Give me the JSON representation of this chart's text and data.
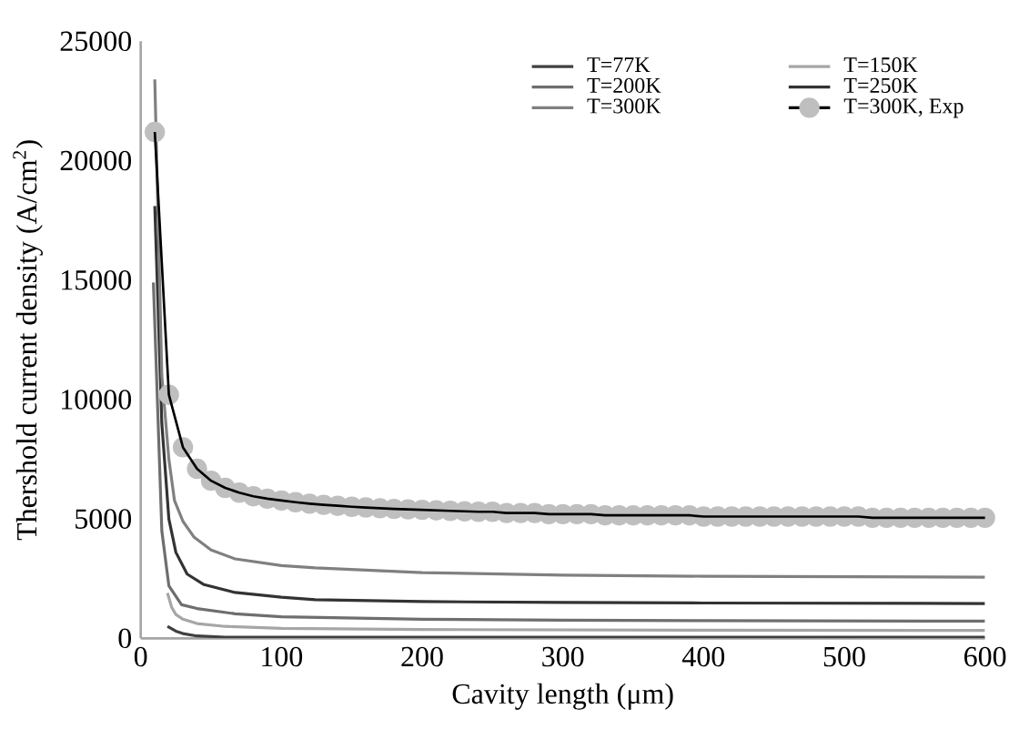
{
  "chart_data": {
    "type": "line",
    "xlabel": "Cavity length (μm)",
    "ylabel": "Thershold current density (A/cm$^{2}$)",
    "xlim": [
      0,
      600
    ],
    "ylim": [
      0,
      25000
    ],
    "xticks": [
      0,
      100,
      200,
      300,
      400,
      500,
      600
    ],
    "yticks": [
      0,
      5000,
      10000,
      15000,
      20000,
      25000
    ],
    "grid": false,
    "legend": "top right",
    "marker": "none",
    "series": [
      {
        "name": "T=77K",
        "color": "#404040",
        "x": [
          19,
          25,
          30,
          40,
          60,
          100,
          200,
          400,
          600
        ],
        "values": [
          500,
          300,
          200,
          100,
          50,
          50,
          50,
          50,
          50
        ]
      },
      {
        "name": "T=150K",
        "color": "#a6a6a6",
        "x": [
          19,
          22,
          25,
          30,
          40,
          60,
          100,
          200,
          400,
          600
        ],
        "values": [
          1900,
          1300,
          1000,
          800,
          620,
          500,
          420,
          370,
          340,
          330
        ]
      },
      {
        "name": "T=200K",
        "color": "#6e6e6e",
        "x": [
          9,
          15,
          20,
          29,
          40,
          67,
          100,
          200,
          300,
          400,
          600
        ],
        "values": [
          14900,
          4500,
          2200,
          1410,
          1250,
          1030,
          900,
          800,
          760,
          740,
          720
        ]
      },
      {
        "name": "T=250K",
        "color": "#333333",
        "x": [
          10,
          15,
          20,
          25,
          33,
          45,
          67,
          100,
          124,
          200,
          300,
          400,
          600
        ],
        "values": [
          18100,
          9000,
          5000,
          3600,
          2690,
          2250,
          1920,
          1720,
          1620,
          1540,
          1500,
          1480,
          1460
        ]
      },
      {
        "name": "T=300K",
        "color": "#808080",
        "x": [
          10,
          15,
          20,
          24,
          30,
          38,
          50,
          67,
          100,
          124,
          200,
          300,
          400,
          600
        ],
        "values": [
          23400,
          11000,
          7500,
          5770,
          4900,
          4230,
          3700,
          3330,
          3050,
          2950,
          2750,
          2650,
          2600,
          2560
        ]
      },
      {
        "name": "T=300K, Exp",
        "color": "#000000",
        "marker": "circle",
        "x": [
          10,
          20,
          30,
          40,
          50,
          60,
          70,
          80,
          90,
          100,
          110,
          120,
          130,
          140,
          150,
          160,
          170,
          180,
          190,
          200,
          210,
          220,
          230,
          240,
          250,
          260,
          270,
          280,
          290,
          300,
          310,
          320,
          330,
          340,
          350,
          360,
          370,
          380,
          390,
          400,
          410,
          420,
          430,
          440,
          450,
          460,
          470,
          480,
          490,
          500,
          510,
          520,
          530,
          540,
          550,
          560,
          570,
          580,
          590,
          600
        ],
        "values": [
          21200,
          10200,
          8000,
          7100,
          6600,
          6300,
          6100,
          5950,
          5850,
          5770,
          5700,
          5640,
          5590,
          5550,
          5510,
          5480,
          5450,
          5420,
          5400,
          5380,
          5360,
          5340,
          5320,
          5300,
          5300,
          5250,
          5250,
          5250,
          5200,
          5200,
          5200,
          5200,
          5150,
          5150,
          5150,
          5150,
          5150,
          5150,
          5150,
          5100,
          5100,
          5100,
          5100,
          5100,
          5100,
          5100,
          5100,
          5100,
          5100,
          5100,
          5100,
          5050,
          5050,
          5050,
          5050,
          5050,
          5050,
          5050,
          5050,
          5050
        ],
        "colors": [
          "#bfbfbf",
          "#bfbfbf",
          "#bfbfbf",
          "#bfbfbf",
          "#bfbfbf",
          "#bfbfbf",
          "#bfbfbf",
          "#bfbfbf",
          "#bfbfbf",
          "#bfbfbf",
          "#bfbfbf",
          "#bfbfbf",
          "#bfbfbf",
          "#bfbfbf",
          "#bfbfbf",
          "#bfbfbf",
          "#bfbfbf",
          "#bfbfbf",
          "#bfbfbf",
          "#bfbfbf",
          "#bfbfbf",
          "#bfbfbf",
          "#bfbfbf",
          "#bfbfbf",
          "#bfbfbf",
          "#bfbfbf",
          "#bfbfbf",
          "#bfbfbf",
          "#bfbfbf",
          "#bfbfbf",
          "#bfbfbf",
          "#bfbfbf",
          "#bfbfbf",
          "#bfbfbf",
          "#bfbfbf",
          "#bfbfbf",
          "#bfbfbf",
          "#bfbfbf",
          "#bfbfbf",
          "#bfbfbf",
          "#bfbfbf",
          "#bfbfbf",
          "#bfbfbf",
          "#bfbfbf",
          "#bfbfbf",
          "#bfbfbf",
          "#bfbfbf",
          "#bfbfbf",
          "#bfbfbf",
          "#bfbfbf",
          "#bfbfbf",
          "#bfbfbf",
          "#bfbfbf",
          "#bfbfbf",
          "#bfbfbf",
          "#bfbfbf",
          "#bfbfbf",
          "#bfbfbf",
          "#bfbfbf",
          "#bfbfbf"
        ]
      }
    ]
  }
}
